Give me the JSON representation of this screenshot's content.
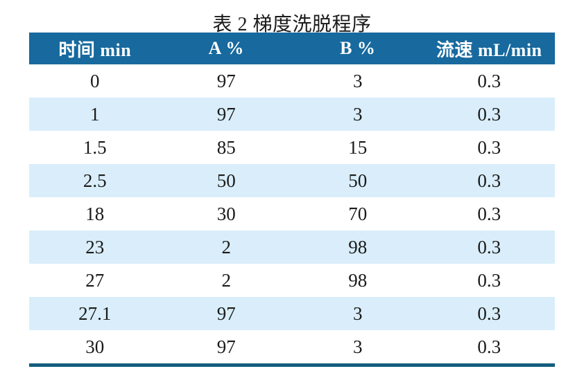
{
  "title": "表 2 梯度洗脱程序",
  "colors": {
    "header_bg": "#17699E",
    "header_text": "#FFFFFF",
    "row_alt_bg": "#D9EEFA",
    "row_bg": "#FFFFFF",
    "bottom_border": "#135D7D",
    "body_text": "#1A1A1A"
  },
  "chart_data": {
    "type": "table",
    "title": "表 2 梯度洗脱程序",
    "columns": [
      "时间 min",
      "A %",
      "B %",
      "流速 mL/min"
    ],
    "rows": [
      [
        "0",
        "97",
        "3",
        "0.3"
      ],
      [
        "1",
        "97",
        "3",
        "0.3"
      ],
      [
        "1.5",
        "85",
        "15",
        "0.3"
      ],
      [
        "2.5",
        "50",
        "50",
        "0.3"
      ],
      [
        "18",
        "30",
        "70",
        "0.3"
      ],
      [
        "23",
        "2",
        "98",
        "0.3"
      ],
      [
        "27",
        "2",
        "98",
        "0.3"
      ],
      [
        "27.1",
        "97",
        "3",
        "0.3"
      ],
      [
        "30",
        "97",
        "3",
        "0.3"
      ]
    ]
  }
}
